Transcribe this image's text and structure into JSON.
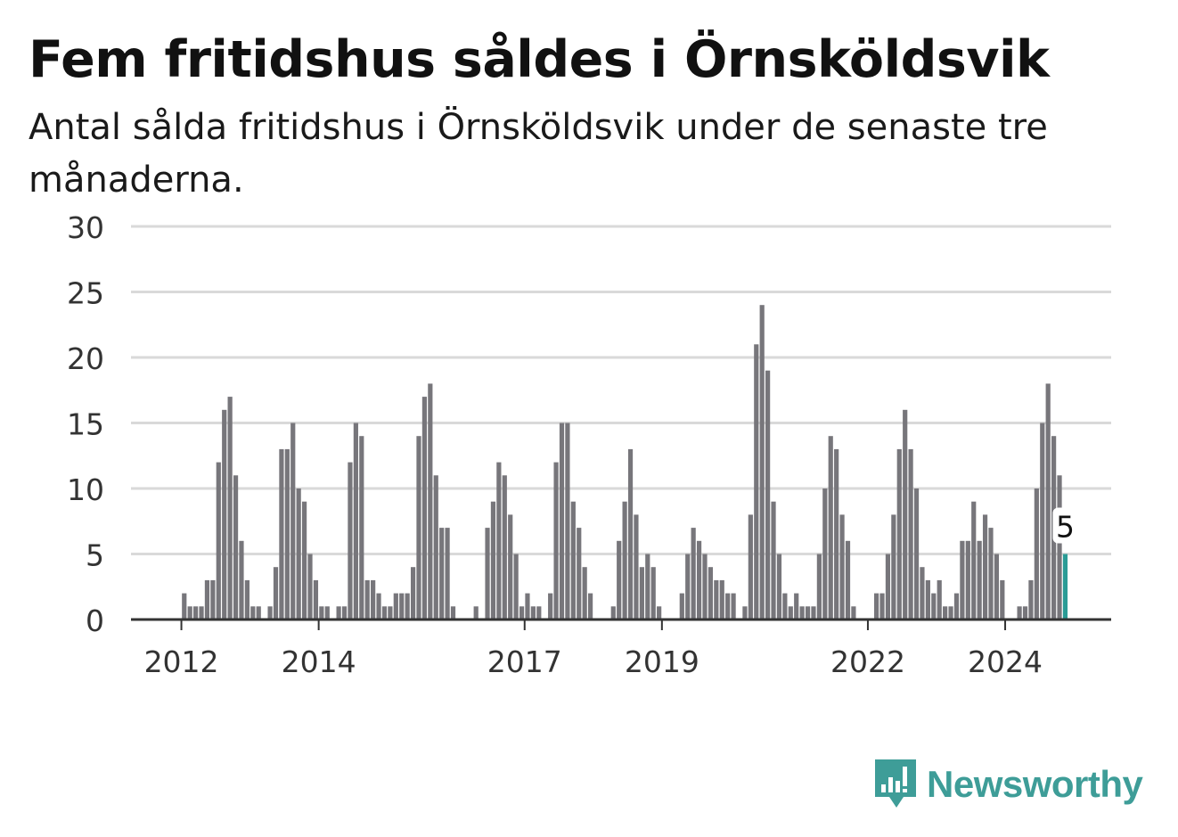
{
  "title": "Fem fritidshus såldes i Örnsköldsvik",
  "subtitle": "Antal sålda fritidshus i Örnsköldsvik under de senaste tre månaderna.",
  "brand": {
    "name": "Newsworthy",
    "color": "#3e9d98",
    "icon": "bar-chart-speech-bubble-icon"
  },
  "colors": {
    "bar": "#77767b",
    "highlight": "#2a9b95",
    "grid": "#d9d9d9",
    "axis": "#333333"
  },
  "chart_data": {
    "type": "bar",
    "title": "Fem fritidshus såldes i Örnsköldsvik",
    "ylim": [
      0,
      30
    ],
    "yticks": [
      0,
      5,
      10,
      15,
      20,
      25,
      30
    ],
    "xticks": [
      "2012",
      "2014",
      "2017",
      "2019",
      "2022",
      "2024"
    ],
    "grid": true,
    "start": "2011-05",
    "end": "2024-12",
    "values": [
      0,
      0,
      0,
      0,
      0,
      0,
      0,
      0,
      2,
      1,
      1,
      1,
      3,
      3,
      12,
      16,
      17,
      11,
      6,
      3,
      1,
      1,
      0,
      1,
      4,
      13,
      13,
      15,
      10,
      9,
      5,
      3,
      1,
      1,
      0,
      1,
      1,
      12,
      15,
      14,
      3,
      3,
      2,
      1,
      1,
      2,
      2,
      2,
      4,
      14,
      17,
      18,
      11,
      7,
      7,
      1,
      0,
      0,
      0,
      1,
      0,
      7,
      9,
      12,
      11,
      8,
      5,
      1,
      2,
      1,
      1,
      0,
      2,
      12,
      15,
      15,
      9,
      7,
      4,
      2,
      0,
      0,
      0,
      1,
      6,
      9,
      13,
      8,
      4,
      5,
      4,
      1,
      0,
      0,
      0,
      2,
      5,
      7,
      6,
      5,
      4,
      3,
      3,
      2,
      2,
      0,
      1,
      8,
      21,
      24,
      19,
      9,
      5,
      2,
      1,
      2,
      1,
      1,
      1,
      5,
      10,
      14,
      13,
      8,
      6,
      1,
      0,
      0,
      0,
      2,
      2,
      5,
      8,
      13,
      16,
      13,
      10,
      4,
      3,
      2,
      3,
      1,
      1,
      2,
      6,
      6,
      9,
      6,
      8,
      7,
      5,
      3,
      0,
      0,
      1,
      1,
      3,
      10,
      15,
      18,
      14,
      11,
      5
    ],
    "highlight": {
      "label": "5",
      "value": 5
    }
  }
}
